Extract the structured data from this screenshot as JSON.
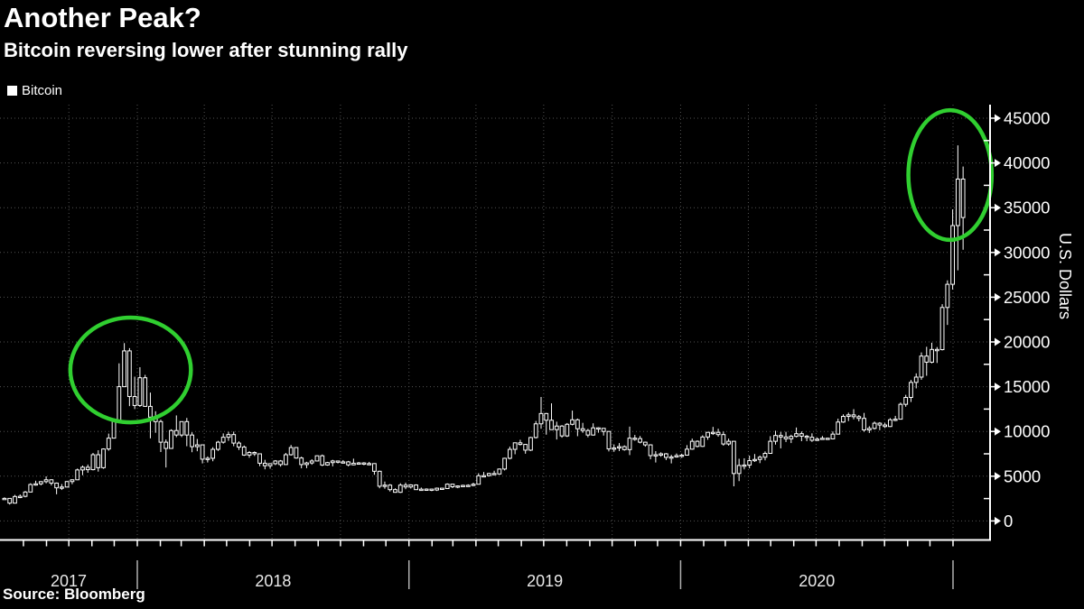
{
  "header": {
    "title": "Another Peak?",
    "subtitle": "Bitcoin reversing lower after stunning rally"
  },
  "legend": {
    "items": [
      {
        "label": "Bitcoin",
        "marker_color": "#ffffff"
      }
    ]
  },
  "source": {
    "text": "Source: Bloomberg"
  },
  "colors": {
    "background": "#000000",
    "text": "#ffffff",
    "year_label": "#e8e8e8",
    "grid": "#525252",
    "axis": "#ffffff",
    "candle": "#ffffff",
    "annotation_green": "#30cf30",
    "year_separator": "#b0b0b0"
  },
  "chart_data": {
    "type": "candlestick",
    "title": "Another Peak?",
    "subtitle": "Bitcoin reversing lower after stunning rally",
    "series_name": "Bitcoin",
    "frequency": "weekly",
    "x_range": [
      "2017-07-03",
      "2021-01-15"
    ],
    "xlabel": "",
    "ylabel": "U.S. Dollars",
    "ylim": [
      0,
      46500
    ],
    "y_ticks": [
      0,
      5000,
      10000,
      15000,
      20000,
      25000,
      30000,
      35000,
      40000,
      45000
    ],
    "y_minor_step": 2500,
    "x_year_labels": [
      "2017",
      "2018",
      "2019",
      "2020"
    ],
    "grid": {
      "horizontal": "every 5000 dotted",
      "vertical": "every quarter dotted"
    },
    "legend_position": "top-left",
    "annotations": [
      {
        "type": "ellipse",
        "note": "Dec 2017 peak circled",
        "cx_date": "2017-12-23",
        "cy_value": 16870,
        "rx_days": 81,
        "ry_value": 5850
      },
      {
        "type": "ellipse",
        "note": "Jan 2021 peak circled",
        "cx_date": "2020-12-28",
        "cy_value": 38650,
        "rx_days": 56,
        "ry_value": 7250
      }
    ],
    "ohlc_columns": [
      "week_start",
      "open",
      "high",
      "low",
      "close"
    ],
    "weeks": [
      [
        "2017-07-03",
        2480,
        2640,
        2440,
        2520
      ],
      [
        "2017-07-10",
        2520,
        2560,
        1830,
        1990
      ],
      [
        "2017-07-17",
        1990,
        2910,
        1940,
        2730
      ],
      [
        "2017-07-24",
        2730,
        2960,
        2550,
        2750
      ],
      [
        "2017-07-31",
        2750,
        3350,
        2640,
        3230
      ],
      [
        "2017-08-07",
        3230,
        4210,
        3210,
        4070
      ],
      [
        "2017-08-14",
        4070,
        4490,
        3950,
        4150
      ],
      [
        "2017-08-21",
        4150,
        4450,
        3980,
        4390
      ],
      [
        "2017-08-28",
        4390,
        4980,
        4200,
        4600
      ],
      [
        "2017-09-04",
        4600,
        4660,
        3970,
        4230
      ],
      [
        "2017-09-11",
        4230,
        4290,
        2980,
        3700
      ],
      [
        "2017-09-18",
        3700,
        4120,
        3460,
        3790
      ],
      [
        "2017-09-25",
        3790,
        4450,
        3760,
        4400
      ],
      [
        "2017-10-02",
        4400,
        4650,
        4110,
        4600
      ],
      [
        "2017-10-09",
        4600,
        5850,
        4560,
        5700
      ],
      [
        "2017-10-16",
        5700,
        6190,
        5110,
        6000
      ],
      [
        "2017-10-23",
        6000,
        6300,
        5380,
        5730
      ],
      [
        "2017-10-30",
        5730,
        7600,
        5650,
        7400
      ],
      [
        "2017-11-06",
        7400,
        7900,
        5510,
        5950
      ],
      [
        "2017-11-13",
        5950,
        8110,
        5830,
        8040
      ],
      [
        "2017-11-20",
        8040,
        9760,
        7850,
        9250
      ],
      [
        "2017-11-27",
        9250,
        11460,
        9240,
        11250
      ],
      [
        "2017-12-04",
        11250,
        17610,
        11160,
        15000
      ],
      [
        "2017-12-11",
        15000,
        19870,
        14950,
        19000
      ],
      [
        "2017-12-18",
        19000,
        19310,
        12830,
        13900
      ],
      [
        "2017-12-25",
        13900,
        16120,
        12500,
        12900
      ],
      [
        "2018-01-01",
        12900,
        17180,
        12750,
        16000
      ],
      [
        "2018-01-08",
        16000,
        16320,
        12900,
        12800
      ],
      [
        "2018-01-15",
        12800,
        14340,
        9230,
        11600
      ],
      [
        "2018-01-22",
        11600,
        12260,
        9850,
        11100
      ],
      [
        "2018-01-29",
        11100,
        11320,
        7700,
        8800
      ],
      [
        "2018-02-05",
        8800,
        9100,
        5970,
        8100
      ],
      [
        "2018-02-12",
        8100,
        10240,
        8050,
        10100
      ],
      [
        "2018-02-19",
        10100,
        11790,
        9360,
        9600
      ],
      [
        "2018-02-26",
        9600,
        11110,
        9370,
        11100
      ],
      [
        "2018-03-05",
        11100,
        11510,
        8350,
        9600
      ],
      [
        "2018-03-12",
        9600,
        9910,
        7680,
        8300
      ],
      [
        "2018-03-19",
        8300,
        9160,
        7790,
        8500
      ],
      [
        "2018-03-26",
        8500,
        8520,
        6430,
        6900
      ],
      [
        "2018-04-02",
        6900,
        7210,
        6530,
        7000
      ],
      [
        "2018-04-09",
        7000,
        8240,
        6670,
        8000
      ],
      [
        "2018-04-16",
        8000,
        8950,
        7820,
        8800
      ],
      [
        "2018-04-23",
        8800,
        9780,
        8640,
        9350
      ],
      [
        "2018-04-30",
        9350,
        9960,
        8950,
        9650
      ],
      [
        "2018-05-07",
        9650,
        9980,
        8350,
        8700
      ],
      [
        "2018-05-14",
        8700,
        8900,
        7930,
        8250
      ],
      [
        "2018-05-21",
        8250,
        8430,
        7270,
        7360
      ],
      [
        "2018-05-28",
        7360,
        7800,
        7060,
        7650
      ],
      [
        "2018-06-04",
        7650,
        7770,
        7260,
        7500
      ],
      [
        "2018-06-11",
        7500,
        7510,
        6120,
        6450
      ],
      [
        "2018-06-18",
        6450,
        6830,
        5770,
        6170
      ],
      [
        "2018-06-25",
        6170,
        6410,
        5840,
        6400
      ],
      [
        "2018-07-02",
        6400,
        6800,
        6240,
        6700
      ],
      [
        "2018-07-09",
        6700,
        6810,
        6070,
        6300
      ],
      [
        "2018-07-16",
        6300,
        7600,
        6260,
        7400
      ],
      [
        "2018-07-23",
        7400,
        8490,
        7300,
        8200
      ],
      [
        "2018-07-30",
        8200,
        8240,
        6950,
        7030
      ],
      [
        "2018-08-06",
        7030,
        7180,
        5880,
        6300
      ],
      [
        "2018-08-13",
        6300,
        6610,
        5900,
        6480
      ],
      [
        "2018-08-20",
        6480,
        6900,
        6280,
        6700
      ],
      [
        "2018-08-27",
        6700,
        7330,
        6660,
        7280
      ],
      [
        "2018-09-03",
        7280,
        7420,
        6130,
        6250
      ],
      [
        "2018-09-10",
        6250,
        6600,
        6170,
        6520
      ],
      [
        "2018-09-17",
        6520,
        6830,
        6100,
        6700
      ],
      [
        "2018-09-24",
        6700,
        6740,
        6430,
        6600
      ],
      [
        "2018-10-01",
        6600,
        6800,
        6430,
        6600
      ],
      [
        "2018-10-08",
        6600,
        6710,
        6100,
        6270
      ],
      [
        "2018-10-15",
        6270,
        6960,
        6220,
        6450
      ],
      [
        "2018-10-22",
        6450,
        6590,
        6370,
        6480
      ],
      [
        "2018-10-29",
        6480,
        6570,
        6230,
        6380
      ],
      [
        "2018-11-05",
        6380,
        6600,
        6330,
        6410
      ],
      [
        "2018-11-12",
        6410,
        6450,
        5160,
        5550
      ],
      [
        "2018-11-19",
        5550,
        5620,
        3650,
        3880
      ],
      [
        "2018-11-26",
        3880,
        4400,
        3600,
        4000
      ],
      [
        "2018-12-03",
        4000,
        4120,
        3290,
        3500
      ],
      [
        "2018-12-10",
        3500,
        3640,
        3150,
        3200
      ],
      [
        "2018-12-17",
        3200,
        4210,
        3130,
        4000
      ],
      [
        "2018-12-24",
        4000,
        4280,
        3550,
        3800
      ],
      [
        "2018-12-31",
        3800,
        4100,
        3620,
        4020
      ],
      [
        "2019-01-07",
        4020,
        4090,
        3500,
        3500
      ],
      [
        "2019-01-14",
        3500,
        3730,
        3440,
        3550
      ],
      [
        "2019-01-21",
        3550,
        3640,
        3420,
        3560
      ],
      [
        "2019-01-28",
        3560,
        3590,
        3330,
        3460
      ],
      [
        "2019-02-04",
        3460,
        3730,
        3350,
        3660
      ],
      [
        "2019-02-11",
        3660,
        3690,
        3530,
        3620
      ],
      [
        "2019-02-18",
        3620,
        4200,
        3610,
        4110
      ],
      [
        "2019-02-25",
        4110,
        4130,
        3670,
        3820
      ],
      [
        "2019-03-04",
        3820,
        3970,
        3660,
        3910
      ],
      [
        "2019-03-11",
        3910,
        4050,
        3830,
        3970
      ],
      [
        "2019-03-18",
        3970,
        4090,
        3890,
        3980
      ],
      [
        "2019-03-25",
        3980,
        4270,
        3880,
        4100
      ],
      [
        "2019-04-01",
        4100,
        5330,
        4090,
        5050
      ],
      [
        "2019-04-08",
        5050,
        5470,
        4920,
        5060
      ],
      [
        "2019-04-15",
        5060,
        5380,
        4970,
        5300
      ],
      [
        "2019-04-22",
        5300,
        5610,
        5120,
        5250
      ],
      [
        "2019-04-29",
        5250,
        5860,
        5150,
        5800
      ],
      [
        "2019-05-06",
        5800,
        7060,
        5640,
        7000
      ],
      [
        "2019-05-13",
        7000,
        8310,
        6880,
        8000
      ],
      [
        "2019-05-20",
        8000,
        8760,
        7450,
        8730
      ],
      [
        "2019-05-27",
        8730,
        9070,
        8430,
        8550
      ],
      [
        "2019-06-03",
        8550,
        8610,
        7510,
        7910
      ],
      [
        "2019-06-10",
        7910,
        9400,
        7810,
        9320
      ],
      [
        "2019-06-17",
        9320,
        11170,
        9210,
        10850
      ],
      [
        "2019-06-24",
        10850,
        13850,
        10300,
        12000
      ],
      [
        "2019-07-01",
        12000,
        12070,
        9640,
        11250
      ],
      [
        "2019-07-08",
        11250,
        13140,
        11000,
        10200
      ],
      [
        "2019-07-15",
        10200,
        11090,
        9100,
        10600
      ],
      [
        "2019-07-22",
        10600,
        10710,
        9300,
        9500
      ],
      [
        "2019-07-29",
        9500,
        10940,
        9380,
        10800
      ],
      [
        "2019-08-05",
        10800,
        12330,
        10680,
        11300
      ],
      [
        "2019-08-12",
        11300,
        11440,
        9470,
        10300
      ],
      [
        "2019-08-19",
        10300,
        10960,
        9850,
        10100
      ],
      [
        "2019-08-26",
        10100,
        10290,
        9350,
        9600
      ],
      [
        "2019-09-02",
        9600,
        10910,
        9540,
        10400
      ],
      [
        "2019-09-09",
        10400,
        10470,
        9860,
        10350
      ],
      [
        "2019-09-16",
        10350,
        10360,
        9540,
        10000
      ],
      [
        "2019-09-23",
        10000,
        10040,
        7770,
        8050
      ],
      [
        "2019-09-30",
        8050,
        8550,
        7720,
        8150
      ],
      [
        "2019-10-07",
        8150,
        8700,
        7810,
        8300
      ],
      [
        "2019-10-14",
        8300,
        8440,
        7850,
        7970
      ],
      [
        "2019-10-21",
        7970,
        10540,
        7360,
        9250
      ],
      [
        "2019-10-28",
        9250,
        9610,
        8960,
        9200
      ],
      [
        "2019-11-04",
        9200,
        9490,
        8670,
        8800
      ],
      [
        "2019-11-11",
        8800,
        8860,
        8300,
        8500
      ],
      [
        "2019-11-18",
        8500,
        8570,
        6890,
        7300
      ],
      [
        "2019-11-25",
        7300,
        7800,
        6530,
        7400
      ],
      [
        "2019-12-02",
        7400,
        7670,
        7170,
        7500
      ],
      [
        "2019-12-09",
        7500,
        7590,
        6800,
        7100
      ],
      [
        "2019-12-16",
        7100,
        7390,
        6430,
        7150
      ],
      [
        "2019-12-23",
        7150,
        7540,
        7080,
        7300
      ],
      [
        "2019-12-30",
        7300,
        7510,
        7060,
        7350
      ],
      [
        "2020-01-06",
        7350,
        8470,
        7320,
        8020
      ],
      [
        "2020-01-13",
        8020,
        9200,
        7950,
        8900
      ],
      [
        "2020-01-20",
        8900,
        9000,
        8220,
        8330
      ],
      [
        "2020-01-27",
        8330,
        9570,
        8270,
        9380
      ],
      [
        "2020-02-03",
        9380,
        9870,
        9070,
        9900
      ],
      [
        "2020-02-10",
        9900,
        10510,
        9610,
        9900
      ],
      [
        "2020-02-17",
        9900,
        10300,
        9410,
        9650
      ],
      [
        "2020-02-24",
        9650,
        9990,
        8410,
        8600
      ],
      [
        "2020-03-02",
        8600,
        9200,
        8410,
        8900
      ],
      [
        "2020-03-09",
        8900,
        8910,
        3870,
        5300
      ],
      [
        "2020-03-16",
        5300,
        6950,
        4450,
        6200
      ],
      [
        "2020-03-23",
        6200,
        7000,
        5760,
        6250
      ],
      [
        "2020-03-30",
        6250,
        7300,
        5880,
        6740
      ],
      [
        "2020-04-06",
        6740,
        7480,
        6590,
        6870
      ],
      [
        "2020-04-13",
        6870,
        7310,
        6460,
        7120
      ],
      [
        "2020-04-20",
        7120,
        7770,
        6770,
        7550
      ],
      [
        "2020-04-27",
        7550,
        9470,
        7500,
        8900
      ],
      [
        "2020-05-04",
        8900,
        10080,
        8530,
        9550
      ],
      [
        "2020-05-11",
        9550,
        9950,
        8110,
        9380
      ],
      [
        "2020-05-18",
        9380,
        9960,
        8820,
        9180
      ],
      [
        "2020-05-25",
        9180,
        9630,
        8700,
        9450
      ],
      [
        "2020-06-01",
        9450,
        10440,
        9330,
        9750
      ],
      [
        "2020-06-08",
        9750,
        10000,
        8910,
        9470
      ],
      [
        "2020-06-15",
        9470,
        9600,
        8910,
        9350
      ],
      [
        "2020-06-22",
        9350,
        9790,
        8830,
        9010
      ],
      [
        "2020-06-29",
        9010,
        9330,
        8930,
        9140
      ],
      [
        "2020-07-06",
        9140,
        9490,
        9110,
        9240
      ],
      [
        "2020-07-13",
        9240,
        9290,
        9050,
        9170
      ],
      [
        "2020-07-20",
        9170,
        10000,
        9110,
        9700
      ],
      [
        "2020-07-27",
        9700,
        11430,
        9660,
        11050
      ],
      [
        "2020-08-03",
        11050,
        11910,
        10960,
        11680
      ],
      [
        "2020-08-10",
        11680,
        12100,
        11160,
        11850
      ],
      [
        "2020-08-17",
        11850,
        12490,
        11350,
        11650
      ],
      [
        "2020-08-24",
        11650,
        11830,
        11130,
        11460
      ],
      [
        "2020-08-31",
        11460,
        12070,
        9960,
        10170
      ],
      [
        "2020-09-07",
        10170,
        10590,
        9830,
        10340
      ],
      [
        "2020-09-14",
        10340,
        11110,
        10210,
        10920
      ],
      [
        "2020-09-21",
        10920,
        11040,
        10140,
        10720
      ],
      [
        "2020-09-28",
        10720,
        10960,
        10380,
        10550
      ],
      [
        "2020-10-05",
        10550,
        11490,
        10500,
        11300
      ],
      [
        "2020-10-12",
        11300,
        11740,
        11150,
        11370
      ],
      [
        "2020-10-19",
        11370,
        13230,
        11360,
        13030
      ],
      [
        "2020-10-26",
        13030,
        14090,
        12760,
        13800
      ],
      [
        "2020-11-02",
        13800,
        15760,
        13290,
        15480
      ],
      [
        "2020-11-09",
        15480,
        16490,
        14810,
        16070
      ],
      [
        "2020-11-16",
        16070,
        18830,
        15770,
        18420
      ],
      [
        "2020-11-23",
        18420,
        19460,
        16220,
        17740
      ],
      [
        "2020-11-30",
        17740,
        19910,
        17610,
        19160
      ],
      [
        "2020-12-07",
        19160,
        19430,
        17650,
        19140
      ],
      [
        "2020-12-14",
        19140,
        24220,
        19050,
        23850
      ],
      [
        "2020-12-21",
        23850,
        26880,
        21900,
        26440
      ],
      [
        "2020-12-28",
        26440,
        34810,
        25850,
        33000
      ],
      [
        "2021-01-04",
        33000,
        41960,
        28000,
        38200
      ],
      [
        "2021-01-11",
        38200,
        39600,
        30300,
        33900
      ]
    ]
  }
}
